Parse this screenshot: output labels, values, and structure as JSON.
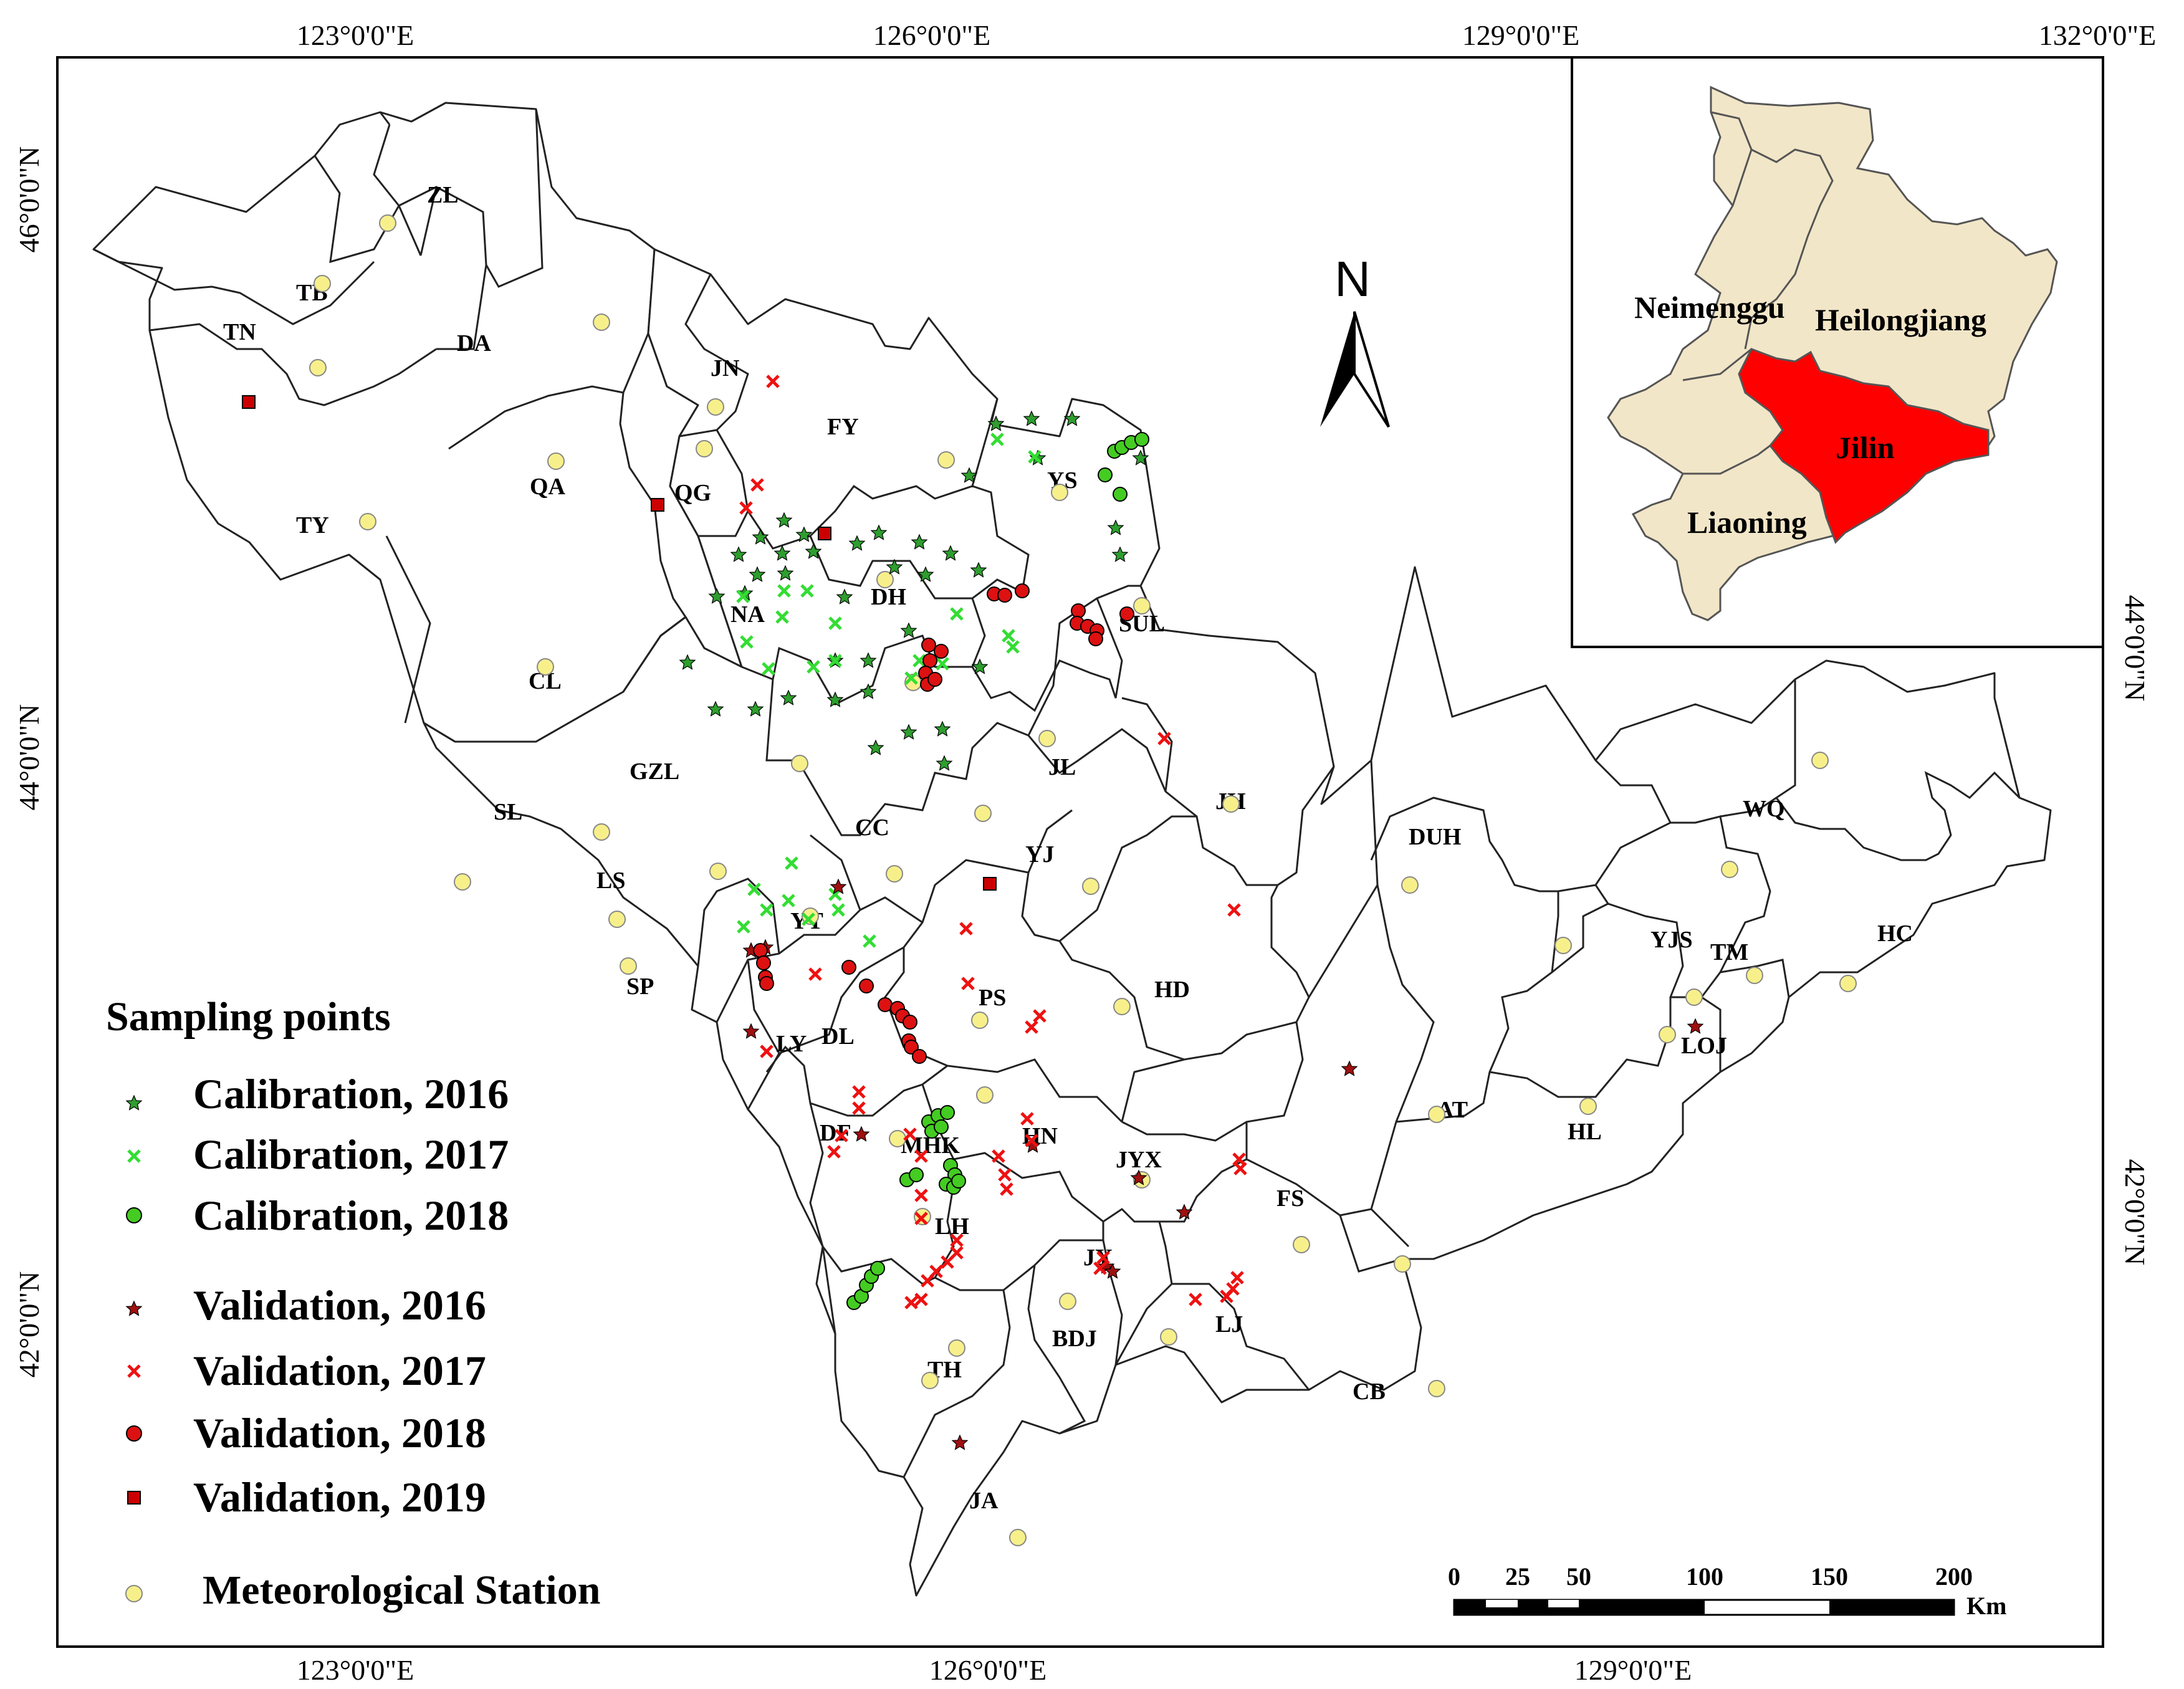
{
  "graticule": {
    "top": [
      "123°0'0\"E",
      "126°0'0\"E",
      "129°0'0\"E",
      "132°0'0\"E"
    ],
    "bottom": [
      "123°0'0\"E",
      "126°0'0\"E",
      "129°0'0\"E"
    ],
    "left": [
      "46°0'0\"N",
      "44°0'0\"N",
      "42°0'0\"N"
    ],
    "right": [
      "44°0'0\"N",
      "42°0'0\"N"
    ]
  },
  "counties": [
    "ZL",
    "TB",
    "TN",
    "DA",
    "JN",
    "FY",
    "YS",
    "QA",
    "QG",
    "TY",
    "NA",
    "DH",
    "SUL",
    "CL",
    "GZL",
    "SL",
    "JL",
    "JH",
    "CC",
    "YJ",
    "DUH",
    "WQ",
    "LS",
    "YT",
    "SP",
    "PS",
    "HD",
    "YJS",
    "TM",
    "HC",
    "LY",
    "DL",
    "LOJ",
    "AT",
    "HL",
    "DF",
    "MHK",
    "HN",
    "JYX",
    "FS",
    "LH",
    "JY",
    "BDJ",
    "LJ",
    "TH",
    "CB",
    "JA"
  ],
  "north_arrow": "N",
  "inset": {
    "provinces": [
      "Neimenggu",
      "Heilongjiang",
      "Jilin",
      "Liaoning"
    ],
    "highlight_color": "#ff0000",
    "base_color": "#f2e6c8"
  },
  "legend": {
    "title": "Sampling points",
    "items": [
      {
        "label": "Calibration, 2016",
        "symbol": "star",
        "color": "#2e9e2e"
      },
      {
        "label": "Calibration, 2017",
        "symbol": "cross",
        "color": "#33dd33"
      },
      {
        "label": "Calibration, 2018",
        "symbol": "circle",
        "color": "#44cc22"
      },
      {
        "label": "Validation, 2016",
        "symbol": "star",
        "color": "#a01010"
      },
      {
        "label": "Validation, 2017",
        "symbol": "cross",
        "color": "#ee1111"
      },
      {
        "label": "Validation, 2018",
        "symbol": "circle",
        "color": "#dd1111"
      },
      {
        "label": "Validation, 2019",
        "symbol": "square",
        "color": "#cc0000"
      },
      {
        "label": "Meteorological Station",
        "symbol": "circle",
        "color": "#f7f08a"
      }
    ]
  },
  "scale_bar": {
    "ticks": [
      "0",
      "25",
      "50",
      "100",
      "150",
      "200"
    ],
    "unit": "Km"
  }
}
